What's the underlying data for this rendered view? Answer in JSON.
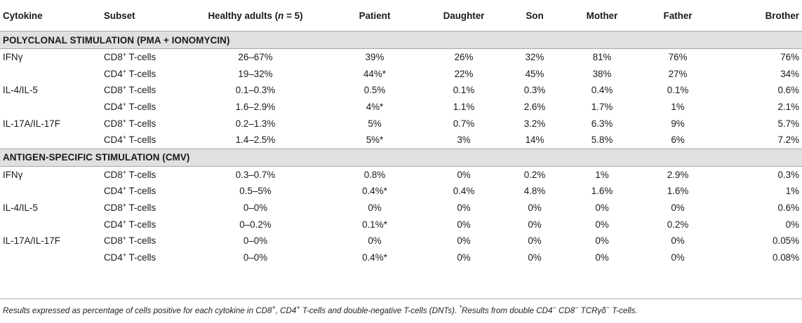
{
  "headers": {
    "cytokine": "Cytokine",
    "subset": "Subset",
    "healthy_pre": "Healthy adults (",
    "healthy_n": "n",
    "healthy_post": " = 5)",
    "patient": "Patient",
    "daughter": "Daughter",
    "son": "Son",
    "mother": "Mother",
    "father": "Father",
    "brother": "Brother"
  },
  "sections": [
    {
      "title": "POLYCLONAL STIMULATION (PMA + IONOMYCIN)",
      "rows": [
        {
          "cytokine": "IFNγ",
          "cell": "CD8",
          "sup": "+",
          "suffix": " T-cells",
          "healthy": "26–67%",
          "patient": "39%",
          "daughter": "26%",
          "son": "32%",
          "mother": "81%",
          "father": "76%",
          "brother": "76%"
        },
        {
          "cytokine": "",
          "cell": "CD4",
          "sup": "+",
          "suffix": " T-cells",
          "healthy": "19–32%",
          "patient": "44%*",
          "daughter": "22%",
          "son": "45%",
          "mother": "38%",
          "father": "27%",
          "brother": "34%"
        },
        {
          "cytokine": "IL-4/IL-5",
          "cell": "CD8",
          "sup": "+",
          "suffix": " T-cells",
          "healthy": "0.1–0.3%",
          "patient": "0.5%",
          "daughter": "0.1%",
          "son": "0.3%",
          "mother": "0.4%",
          "father": "0.1%",
          "brother": "0.6%"
        },
        {
          "cytokine": "",
          "cell": "CD4",
          "sup": "+",
          "suffix": " T-cells",
          "healthy": "1.6–2.9%",
          "patient": "4%*",
          "daughter": "1.1%",
          "son": "2.6%",
          "mother": "1.7%",
          "father": "1%",
          "brother": "2.1%"
        },
        {
          "cytokine": "IL-17A/IL-17F",
          "cell": "CD8",
          "sup": "+",
          "suffix": " T-cells",
          "healthy": "0.2–1.3%",
          "patient": "5%",
          "daughter": "0.7%",
          "son": "3.2%",
          "mother": "6.3%",
          "father": "9%",
          "brother": "5.7%"
        },
        {
          "cytokine": "",
          "cell": "CD4",
          "sup": "+",
          "suffix": " T-cells",
          "healthy": "1.4–2.5%",
          "patient": "5%*",
          "daughter": "3%",
          "son": "14%",
          "mother": "5.8%",
          "father": "6%",
          "brother": "7.2%"
        }
      ]
    },
    {
      "title": "ANTIGEN-SPECIFIC STIMULATION (CMV)",
      "rows": [
        {
          "cytokine": "IFNγ",
          "cell": "CD8",
          "sup": "+",
          "suffix": " T-cells",
          "healthy": "0.3–0.7%",
          "patient": "0.8%",
          "daughter": "0%",
          "son": "0.2%",
          "mother": "1%",
          "father": "2.9%",
          "brother": "0.3%"
        },
        {
          "cytokine": "",
          "cell": "CD4",
          "sup": "+",
          "suffix": " T-cells",
          "healthy": "0.5–5%",
          "patient": "0.4%*",
          "daughter": "0.4%",
          "son": "4.8%",
          "mother": "1.6%",
          "father": "1.6%",
          "brother": "1%"
        },
        {
          "cytokine": "IL-4/IL-5",
          "cell": "CD8",
          "sup": "+",
          "suffix": " T-cells",
          "healthy": "0–0%",
          "patient": "0%",
          "daughter": "0%",
          "son": "0%",
          "mother": "0%",
          "father": "0%",
          "brother": "0.6%"
        },
        {
          "cytokine": "",
          "cell": "CD4",
          "sup": "+",
          "suffix": " T-cells",
          "healthy": "0–0.2%",
          "patient": "0.1%*",
          "daughter": "0%",
          "son": "0%",
          "mother": "0%",
          "father": "0.2%",
          "brother": "0%"
        },
        {
          "cytokine": "IL-17A/IL-17F",
          "cell": "CD8",
          "sup": "+",
          "suffix": " T-cells",
          "healthy": "0–0%",
          "patient": "0%",
          "daughter": "0%",
          "son": "0%",
          "mother": "0%",
          "father": "0%",
          "brother": "0.05%"
        },
        {
          "cytokine": "",
          "cell": "CD4",
          "sup": "+",
          "suffix": " T-cells",
          "healthy": "0–0%",
          "patient": "0.4%*",
          "daughter": "0%",
          "son": "0%",
          "mother": "0%",
          "father": "0%",
          "brother": "0.08%"
        }
      ]
    }
  ],
  "footnote": {
    "t1": "Results expressed as percentage of cells positive for each cytokine in CD8",
    "s1": "+",
    "t2": ", CD4",
    "s2": "+",
    "t3": " T-cells and double-negative T-cells (DNTs). ",
    "s3": "*",
    "t4": "Results from double CD4",
    "s4": "−",
    "t5": " CD8",
    "s5": "−",
    "t6": " TCRγδ",
    "s6": "−",
    "t7": " T-cells."
  }
}
